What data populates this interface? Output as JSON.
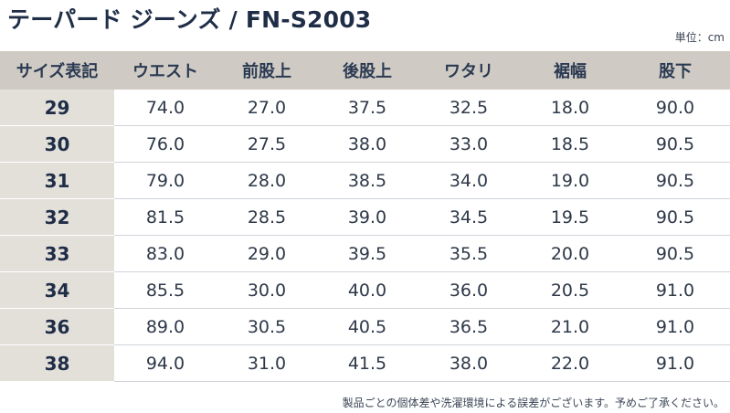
{
  "title": "テーパード ジーンズ / FN-S2003",
  "unit": "単位：cm",
  "table": {
    "headers": [
      "サイズ表記",
      "ウエスト",
      "前股上",
      "後股上",
      "ワタリ",
      "裾幅",
      "股下"
    ],
    "rows": [
      [
        "29",
        "74.0",
        "27.0",
        "37.5",
        "32.5",
        "18.0",
        "90.0"
      ],
      [
        "30",
        "76.0",
        "27.5",
        "38.0",
        "33.0",
        "18.5",
        "90.5"
      ],
      [
        "31",
        "79.0",
        "28.0",
        "38.5",
        "34.0",
        "19.0",
        "90.5"
      ],
      [
        "32",
        "81.5",
        "28.5",
        "39.0",
        "34.5",
        "19.5",
        "90.5"
      ],
      [
        "33",
        "83.0",
        "29.0",
        "39.5",
        "35.5",
        "20.0",
        "90.5"
      ],
      [
        "34",
        "85.5",
        "30.0",
        "40.0",
        "36.0",
        "20.5",
        "91.0"
      ],
      [
        "36",
        "89.0",
        "30.5",
        "40.5",
        "36.5",
        "21.0",
        "91.0"
      ],
      [
        "38",
        "94.0",
        "31.0",
        "41.5",
        "38.0",
        "22.0",
        "91.0"
      ]
    ]
  },
  "note": "製品ごとの個体差や洗濯環境による誤差がございます。予めご了承ください。",
  "colors": {
    "header_bg": "#cfcbc4",
    "size_column_bg": "#e3e0da",
    "text": "#2b3a52"
  }
}
